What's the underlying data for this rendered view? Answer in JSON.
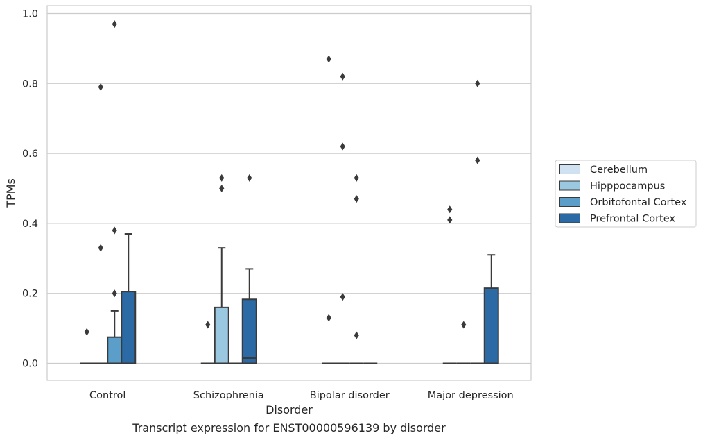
{
  "chart_data": {
    "type": "box",
    "title": "",
    "caption": "Transcript expression for ENST00000596139 by disorder",
    "xlabel": "Disorder",
    "ylabel": "TPMs",
    "ylim": [
      -0.045,
      1.02
    ],
    "yticks": [
      0.0,
      0.2,
      0.4,
      0.6,
      0.8,
      1.0
    ],
    "ytick_labels": [
      "0.0",
      "0.2",
      "0.4",
      "0.6",
      "0.8",
      "1.0"
    ],
    "grid": "horizontal",
    "legend_position": "right",
    "categories": [
      "Control",
      "Schizophrenia",
      "Bipolar disorder",
      "Major depression"
    ],
    "series": [
      {
        "name": "Cerebellum",
        "color": "#d0e2f2",
        "boxes": [
          {
            "q1": 0,
            "median": 0,
            "q3": 0,
            "whisker_low": 0,
            "whisker_high": 0,
            "outliers": [
              0.09
            ]
          },
          {
            "q1": 0,
            "median": 0,
            "q3": 0,
            "whisker_low": 0,
            "whisker_high": 0,
            "outliers": [
              0.11
            ]
          },
          {
            "q1": 0,
            "median": 0,
            "q3": 0,
            "whisker_low": 0,
            "whisker_high": 0,
            "outliers": [
              0.13,
              0.87
            ]
          },
          {
            "q1": 0,
            "median": 0,
            "q3": 0,
            "whisker_low": 0,
            "whisker_high": 0,
            "outliers": [
              0.41,
              0.44
            ]
          }
        ]
      },
      {
        "name": "Hipppocampus",
        "color": "#9ac8e0",
        "boxes": [
          {
            "q1": 0,
            "median": 0,
            "q3": 0,
            "whisker_low": 0,
            "whisker_high": 0,
            "outliers": [
              0.33,
              0.79
            ]
          },
          {
            "q1": 0,
            "median": 0,
            "q3": 0.16,
            "whisker_low": 0,
            "whisker_high": 0.33,
            "outliers": [
              0.5,
              0.53
            ]
          },
          {
            "q1": 0,
            "median": 0,
            "q3": 0,
            "whisker_low": 0,
            "whisker_high": 0,
            "outliers": [
              0.19,
              0.62,
              0.82
            ]
          },
          {
            "q1": 0,
            "median": 0,
            "q3": 0,
            "whisker_low": 0,
            "whisker_high": 0,
            "outliers": [
              0.11
            ]
          }
        ]
      },
      {
        "name": "Orbitofontal Cortex",
        "color": "#5a9ec9",
        "boxes": [
          {
            "q1": 0,
            "median": 0,
            "q3": 0.075,
            "whisker_low": 0,
            "whisker_high": 0.15,
            "outliers": [
              0.2,
              0.38,
              0.97
            ]
          },
          {
            "q1": 0,
            "median": 0,
            "q3": 0,
            "whisker_low": 0,
            "whisker_high": 0,
            "outliers": []
          },
          {
            "q1": 0,
            "median": 0,
            "q3": 0,
            "whisker_low": 0,
            "whisker_high": 0,
            "outliers": [
              0.08,
              0.47,
              0.53
            ]
          },
          {
            "q1": 0,
            "median": 0,
            "q3": 0,
            "whisker_low": 0,
            "whisker_high": 0,
            "outliers": [
              0.58,
              0.8
            ]
          }
        ]
      },
      {
        "name": "Prefrontal Cortex",
        "color": "#2b6aa5",
        "boxes": [
          {
            "q1": 0,
            "median": 0,
            "q3": 0.205,
            "whisker_low": 0,
            "whisker_high": 0.37,
            "outliers": []
          },
          {
            "q1": 0,
            "median": 0.015,
            "q3": 0.183,
            "whisker_low": 0,
            "whisker_high": 0.27,
            "outliers": [
              0.53
            ]
          },
          {
            "q1": 0,
            "median": 0,
            "q3": 0,
            "whisker_low": 0,
            "whisker_high": 0,
            "outliers": []
          },
          {
            "q1": 0,
            "median": 0,
            "q3": 0.215,
            "whisker_low": 0,
            "whisker_high": 0.31,
            "outliers": []
          }
        ]
      }
    ]
  }
}
